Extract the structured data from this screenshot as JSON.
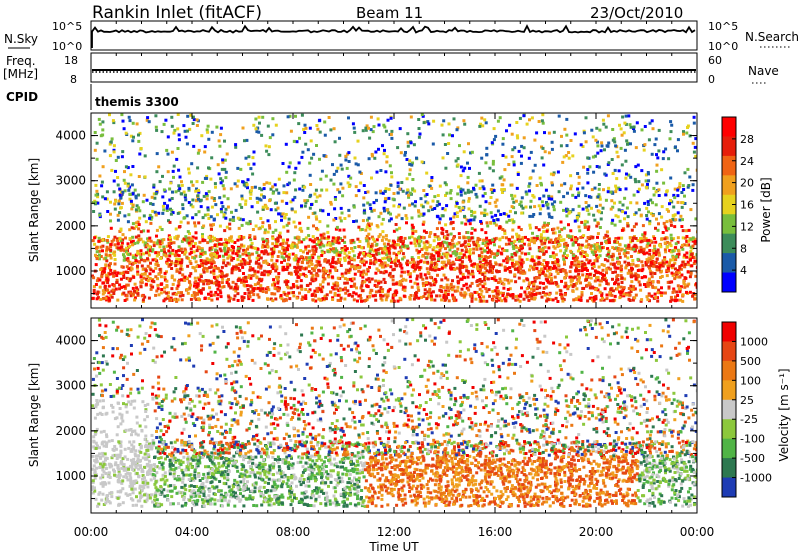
{
  "header": {
    "station": "Rankin Inlet (fitACF)",
    "beam": "Beam 11",
    "date": "23/Oct/2010"
  },
  "top_panels": {
    "nsky_label": "N.Sky",
    "nsky_ticks": [
      "10^5",
      "10^0"
    ],
    "nsearch_label": "N.Search",
    "nsearch_ticks": [
      "10^5",
      "10^0"
    ],
    "freq_label": "Freq.",
    "freq_unit": "[MHz]",
    "freq_ticks": [
      "18",
      "8"
    ],
    "nave_label": "Nave",
    "nave_ticks": [
      "60",
      "0"
    ],
    "cpid_label": "CPID",
    "cpid_value": "themis 3300"
  },
  "colors": {
    "power_scale": [
      "#0000ff",
      "#1a5aa8",
      "#3c8c5a",
      "#78be3c",
      "#e6d21e",
      "#f0a01e",
      "#f06414",
      "#e61e0a",
      "#ff0000"
    ],
    "velocity_scale": [
      "#1e3cb4",
      "#2d7850",
      "#50b446",
      "#8cc83c",
      "#c8c8c8",
      "#f0a01e",
      "#eb7814",
      "#e64614",
      "#f00000"
    ]
  },
  "chart_data": [
    {
      "type": "heatmap",
      "name": "power-panel",
      "ylabel": "Slant Range [km]",
      "y_ticks": [
        "4000",
        "3000",
        "2000",
        "1000"
      ],
      "ylim": [
        180,
        4500
      ],
      "colorbar_label": "Power [dB]",
      "colorbar_ticks": [
        "28",
        "24",
        "20",
        "16",
        "12",
        "8",
        "4"
      ],
      "colorbar_range": [
        0,
        30
      ]
    },
    {
      "type": "heatmap",
      "name": "velocity-panel",
      "ylabel": "Slant Range [km]",
      "y_ticks": [
        "4000",
        "3000",
        "2000",
        "1000"
      ],
      "ylim": [
        180,
        4500
      ],
      "colorbar_label": "Velocity [m s⁻¹]",
      "colorbar_ticks": [
        "1000",
        "500",
        "100",
        "25",
        "-25",
        "-100",
        "-500",
        "-1000"
      ]
    }
  ],
  "x_axis": {
    "ticks": [
      "00:00",
      "04:00",
      "08:00",
      "12:00",
      "16:00",
      "20:00",
      "00:00"
    ],
    "label": "Time UT",
    "range_hours": [
      0,
      24
    ]
  }
}
